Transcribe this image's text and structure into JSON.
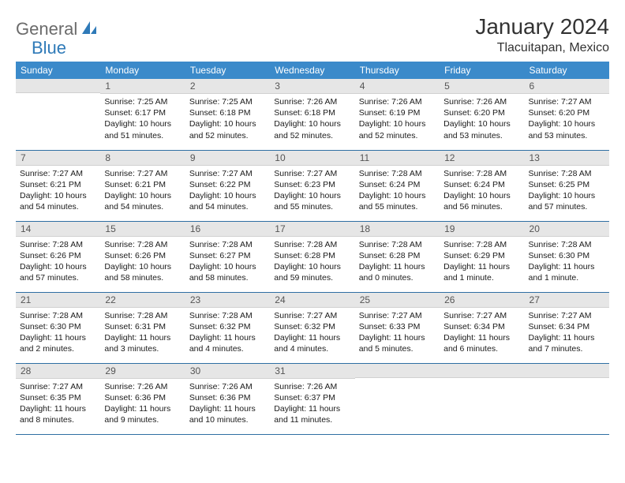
{
  "logo": {
    "part1": "General",
    "part2": "Blue"
  },
  "title": "January 2024",
  "location": "Tlacuitapan, Mexico",
  "colors": {
    "header_bg": "#3b8aca",
    "header_text": "#ffffff",
    "daynum_bg": "#e6e6e6",
    "row_border": "#2f6fa3",
    "logo_gray": "#6b6b6b",
    "logo_blue": "#2f7ab8"
  },
  "weekdays": [
    "Sunday",
    "Monday",
    "Tuesday",
    "Wednesday",
    "Thursday",
    "Friday",
    "Saturday"
  ],
  "weeks": [
    [
      null,
      {
        "n": "1",
        "sr": "7:25 AM",
        "ss": "6:17 PM",
        "dl": "10 hours and 51 minutes."
      },
      {
        "n": "2",
        "sr": "7:25 AM",
        "ss": "6:18 PM",
        "dl": "10 hours and 52 minutes."
      },
      {
        "n": "3",
        "sr": "7:26 AM",
        "ss": "6:18 PM",
        "dl": "10 hours and 52 minutes."
      },
      {
        "n": "4",
        "sr": "7:26 AM",
        "ss": "6:19 PM",
        "dl": "10 hours and 52 minutes."
      },
      {
        "n": "5",
        "sr": "7:26 AM",
        "ss": "6:20 PM",
        "dl": "10 hours and 53 minutes."
      },
      {
        "n": "6",
        "sr": "7:27 AM",
        "ss": "6:20 PM",
        "dl": "10 hours and 53 minutes."
      }
    ],
    [
      {
        "n": "7",
        "sr": "7:27 AM",
        "ss": "6:21 PM",
        "dl": "10 hours and 54 minutes."
      },
      {
        "n": "8",
        "sr": "7:27 AM",
        "ss": "6:21 PM",
        "dl": "10 hours and 54 minutes."
      },
      {
        "n": "9",
        "sr": "7:27 AM",
        "ss": "6:22 PM",
        "dl": "10 hours and 54 minutes."
      },
      {
        "n": "10",
        "sr": "7:27 AM",
        "ss": "6:23 PM",
        "dl": "10 hours and 55 minutes."
      },
      {
        "n": "11",
        "sr": "7:28 AM",
        "ss": "6:24 PM",
        "dl": "10 hours and 55 minutes."
      },
      {
        "n": "12",
        "sr": "7:28 AM",
        "ss": "6:24 PM",
        "dl": "10 hours and 56 minutes."
      },
      {
        "n": "13",
        "sr": "7:28 AM",
        "ss": "6:25 PM",
        "dl": "10 hours and 57 minutes."
      }
    ],
    [
      {
        "n": "14",
        "sr": "7:28 AM",
        "ss": "6:26 PM",
        "dl": "10 hours and 57 minutes."
      },
      {
        "n": "15",
        "sr": "7:28 AM",
        "ss": "6:26 PM",
        "dl": "10 hours and 58 minutes."
      },
      {
        "n": "16",
        "sr": "7:28 AM",
        "ss": "6:27 PM",
        "dl": "10 hours and 58 minutes."
      },
      {
        "n": "17",
        "sr": "7:28 AM",
        "ss": "6:28 PM",
        "dl": "10 hours and 59 minutes."
      },
      {
        "n": "18",
        "sr": "7:28 AM",
        "ss": "6:28 PM",
        "dl": "11 hours and 0 minutes."
      },
      {
        "n": "19",
        "sr": "7:28 AM",
        "ss": "6:29 PM",
        "dl": "11 hours and 1 minute."
      },
      {
        "n": "20",
        "sr": "7:28 AM",
        "ss": "6:30 PM",
        "dl": "11 hours and 1 minute."
      }
    ],
    [
      {
        "n": "21",
        "sr": "7:28 AM",
        "ss": "6:30 PM",
        "dl": "11 hours and 2 minutes."
      },
      {
        "n": "22",
        "sr": "7:28 AM",
        "ss": "6:31 PM",
        "dl": "11 hours and 3 minutes."
      },
      {
        "n": "23",
        "sr": "7:28 AM",
        "ss": "6:32 PM",
        "dl": "11 hours and 4 minutes."
      },
      {
        "n": "24",
        "sr": "7:27 AM",
        "ss": "6:32 PM",
        "dl": "11 hours and 4 minutes."
      },
      {
        "n": "25",
        "sr": "7:27 AM",
        "ss": "6:33 PM",
        "dl": "11 hours and 5 minutes."
      },
      {
        "n": "26",
        "sr": "7:27 AM",
        "ss": "6:34 PM",
        "dl": "11 hours and 6 minutes."
      },
      {
        "n": "27",
        "sr": "7:27 AM",
        "ss": "6:34 PM",
        "dl": "11 hours and 7 minutes."
      }
    ],
    [
      {
        "n": "28",
        "sr": "7:27 AM",
        "ss": "6:35 PM",
        "dl": "11 hours and 8 minutes."
      },
      {
        "n": "29",
        "sr": "7:26 AM",
        "ss": "6:36 PM",
        "dl": "11 hours and 9 minutes."
      },
      {
        "n": "30",
        "sr": "7:26 AM",
        "ss": "6:36 PM",
        "dl": "11 hours and 10 minutes."
      },
      {
        "n": "31",
        "sr": "7:26 AM",
        "ss": "6:37 PM",
        "dl": "11 hours and 11 minutes."
      },
      null,
      null,
      null
    ]
  ],
  "labels": {
    "sunrise": "Sunrise:",
    "sunset": "Sunset:",
    "daylight": "Daylight:"
  }
}
